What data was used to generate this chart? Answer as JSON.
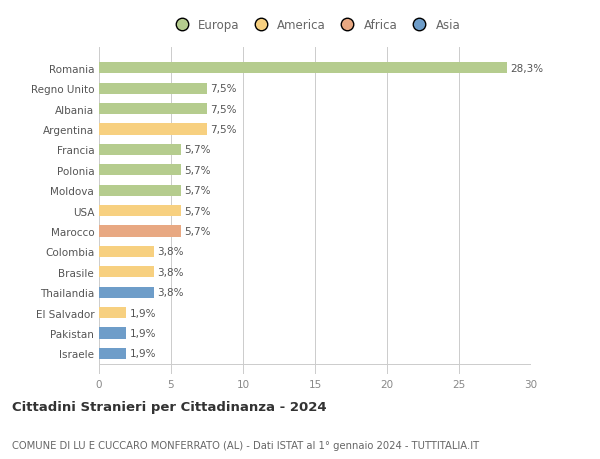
{
  "countries": [
    "Romania",
    "Regno Unito",
    "Albania",
    "Argentina",
    "Francia",
    "Polonia",
    "Moldova",
    "USA",
    "Marocco",
    "Colombia",
    "Brasile",
    "Thailandia",
    "El Salvador",
    "Pakistan",
    "Israele"
  ],
  "values": [
    28.3,
    7.5,
    7.5,
    7.5,
    5.7,
    5.7,
    5.7,
    5.7,
    5.7,
    3.8,
    3.8,
    3.8,
    1.9,
    1.9,
    1.9
  ],
  "labels": [
    "28,3%",
    "7,5%",
    "7,5%",
    "7,5%",
    "5,7%",
    "5,7%",
    "5,7%",
    "5,7%",
    "5,7%",
    "3,8%",
    "3,8%",
    "3,8%",
    "1,9%",
    "1,9%",
    "1,9%"
  ],
  "colors": [
    "#b5cc8e",
    "#b5cc8e",
    "#b5cc8e",
    "#f7d080",
    "#b5cc8e",
    "#b5cc8e",
    "#b5cc8e",
    "#f7d080",
    "#e8a882",
    "#f7d080",
    "#f7d080",
    "#6e9dc9",
    "#f7d080",
    "#6e9dc9",
    "#6e9dc9"
  ],
  "legend_labels": [
    "Europa",
    "America",
    "Africa",
    "Asia"
  ],
  "legend_colors": [
    "#b5cc8e",
    "#f7d080",
    "#e8a882",
    "#6e9dc9"
  ],
  "title": "Cittadini Stranieri per Cittadinanza - 2024",
  "subtitle": "COMUNE DI LU E CUCCARO MONFERRATO (AL) - Dati ISTAT al 1° gennaio 2024 - TUTTITALIA.IT",
  "xlim": [
    0,
    30
  ],
  "xticks": [
    0,
    5,
    10,
    15,
    20,
    25,
    30
  ],
  "background_color": "#ffffff",
  "grid_color": "#cccccc",
  "bar_height": 0.55,
  "title_fontsize": 9.5,
  "subtitle_fontsize": 7.2,
  "label_fontsize": 7.5,
  "tick_fontsize": 7.5,
  "legend_fontsize": 8.5
}
